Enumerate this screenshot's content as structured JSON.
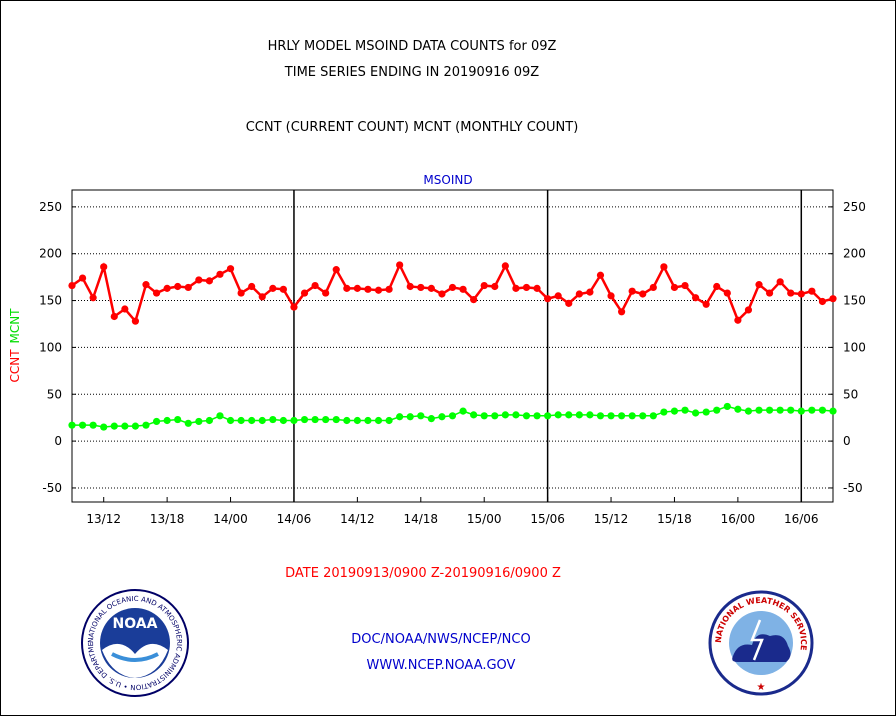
{
  "header": {
    "line1": "HRLY MODEL MSOIND DATA COUNTS for 09Z",
    "line2": "TIME SERIES ENDING IN 20190916 09Z",
    "line3": "CCNT (CURRENT COUNT) MCNT (MONTHLY COUNT)"
  },
  "footer": {
    "date_range": "DATE 20190913/0900 Z-20190916/0900 Z",
    "org": "DOC/NOAA/NWS/NCEP/NCO",
    "url": "WWW.NCEP.NOAA.GOV"
  },
  "logos": {
    "noaa": {
      "center_text": "NOAA",
      "ring_text": "NATIONAL OCEANIC AND ATMOSPHERIC ADMINISTRATION • U.S. DEPARTMENT OF COMMERCE •"
    },
    "nws": {
      "ring_text": "NATIONAL WEATHER SERVICE"
    }
  },
  "chart_data": {
    "type": "line",
    "title": "MSOIND",
    "ylabel_left": [
      "CCNT",
      "MCNT"
    ],
    "ylim": [
      -65,
      268
    ],
    "yticks": [
      -50,
      0,
      50,
      100,
      150,
      200,
      250
    ],
    "xticks": [
      "13/12",
      "13/18",
      "14/00",
      "14/06",
      "14/12",
      "14/18",
      "15/00",
      "15/06",
      "15/12",
      "15/18",
      "16/00",
      "16/06"
    ],
    "xtick_hours": [
      3,
      9,
      15,
      21,
      27,
      33,
      39,
      45,
      51,
      57,
      63,
      69
    ],
    "day_boundary_hours": [
      21,
      45,
      69
    ],
    "x_hours_range": [
      0,
      72
    ],
    "grid": "horizontal dotted",
    "colors": {
      "ccnt": "#ff0000",
      "mcnt": "#00ff00",
      "title": "#0000cc",
      "date": "#ff0000",
      "footer": "#0000cc"
    },
    "series": [
      {
        "name": "CCNT",
        "values": [
          166,
          174,
          153,
          186,
          133,
          141,
          128,
          167,
          158,
          163,
          165,
          164,
          172,
          171,
          178,
          184,
          158,
          165,
          154,
          163,
          162,
          143,
          158,
          166,
          158,
          183,
          163,
          163,
          162,
          161,
          162,
          188,
          165,
          164,
          163,
          157,
          164,
          162,
          151,
          166,
          165,
          187,
          163,
          164,
          163,
          152,
          155,
          147,
          157,
          159,
          177,
          155,
          138,
          160,
          157,
          164,
          186,
          164,
          166,
          153,
          146,
          165,
          158,
          129,
          140,
          167,
          158,
          170,
          158,
          157,
          160,
          149,
          152
        ]
      },
      {
        "name": "MCNT",
        "values": [
          17,
          17,
          17,
          15,
          16,
          16,
          16,
          17,
          21,
          22,
          23,
          19,
          21,
          22,
          27,
          22,
          22,
          22,
          22,
          23,
          22,
          22,
          23,
          23,
          23,
          23,
          22,
          22,
          22,
          22,
          22,
          26,
          26,
          27,
          24,
          26,
          27,
          32,
          28,
          27,
          27,
          28,
          28,
          27,
          27,
          27,
          28,
          28,
          28,
          28,
          27,
          27,
          27,
          27,
          27,
          27,
          31,
          32,
          33,
          30,
          31,
          33,
          37,
          34,
          32,
          33,
          33,
          33,
          33,
          32,
          33,
          33,
          32
        ]
      }
    ]
  }
}
